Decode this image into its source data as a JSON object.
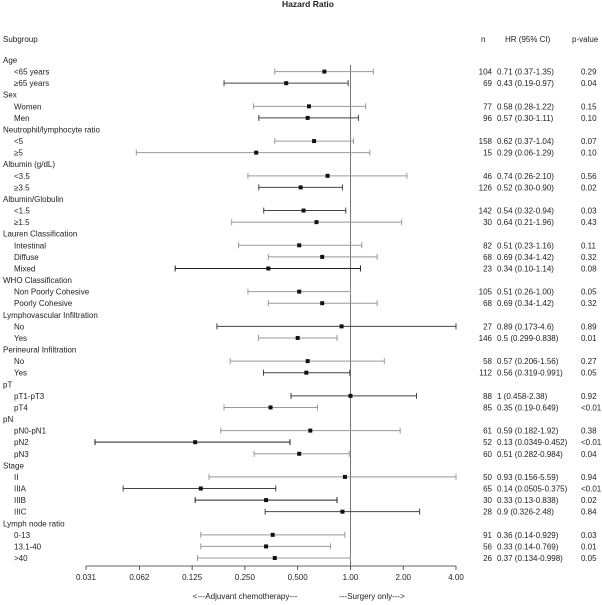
{
  "chart_data": {
    "type": "forest",
    "title": "Hazard Ratio",
    "headers": {
      "subgroup": "Subgroup",
      "n": "n",
      "hr": "HR (95% CI)",
      "p": "p-value"
    },
    "x_scale": "log2",
    "xlim": [
      0.031,
      4.0
    ],
    "reference_line": 1.0,
    "ticks": [
      {
        "value": 0.031,
        "label": "0.031"
      },
      {
        "value": 0.0625,
        "label": "0.062"
      },
      {
        "value": 0.125,
        "label": "0.125"
      },
      {
        "value": 0.25,
        "label": "0.250"
      },
      {
        "value": 0.5,
        "label": "0.500"
      },
      {
        "value": 1.0,
        "label": "1.00"
      },
      {
        "value": 2.0,
        "label": "2.00"
      },
      {
        "value": 4.0,
        "label": "4.00"
      }
    ],
    "footer_left": "<---Adjuvant chemotherapy---",
    "footer_right": "---Surgery only--->",
    "rows": [
      {
        "type": "header",
        "label": "Age"
      },
      {
        "type": "data",
        "label": "<65 years",
        "n": "104",
        "hr_text": "0.71 (0.37-1.35)",
        "p": "0.29",
        "hr": 0.71,
        "lo": 0.37,
        "hi": 1.35,
        "color": "#999999"
      },
      {
        "type": "data",
        "label": "≥65 years",
        "n": "69",
        "hr_text": "0.43 (0.19-0.97)",
        "p": "0.04",
        "hr": 0.43,
        "lo": 0.19,
        "hi": 0.97,
        "color": "#444444"
      },
      {
        "type": "header",
        "label": "Sex"
      },
      {
        "type": "data",
        "label": "Women",
        "n": "77",
        "hr_text": "0.58 (0.28-1.22)",
        "p": "0.15",
        "hr": 0.58,
        "lo": 0.28,
        "hi": 1.22,
        "color": "#999999"
      },
      {
        "type": "data",
        "label": "Men",
        "n": "96",
        "hr_text": "0.57 (0.30-1.11)",
        "p": "0.10",
        "hr": 0.57,
        "lo": 0.3,
        "hi": 1.11,
        "color": "#444444"
      },
      {
        "type": "header",
        "label": "Neutrophil/lymphocyte ratio"
      },
      {
        "type": "data",
        "label": "<5",
        "n": "158",
        "hr_text": "0.62 (0.37-1.04)",
        "p": "0.07",
        "hr": 0.62,
        "lo": 0.37,
        "hi": 1.04,
        "color": "#999999"
      },
      {
        "type": "data",
        "label": "≥5",
        "n": "15",
        "hr_text": "0.29 (0.06-1.29)",
        "p": "0.10",
        "hr": 0.29,
        "lo": 0.06,
        "hi": 1.29,
        "color": "#999999"
      },
      {
        "type": "header",
        "label": "Albumin (g/dL)"
      },
      {
        "type": "data",
        "label": "<3.5",
        "n": "46",
        "hr_text": "0.74 (0.26-2.10)",
        "p": "0.56",
        "hr": 0.74,
        "lo": 0.26,
        "hi": 2.1,
        "color": "#999999"
      },
      {
        "type": "data",
        "label": "≥3.5",
        "n": "126",
        "hr_text": "0.52 (0.30-0.90)",
        "p": "0.02",
        "hr": 0.52,
        "lo": 0.3,
        "hi": 0.9,
        "color": "#444444"
      },
      {
        "type": "header",
        "label": "Albumin/Globulin"
      },
      {
        "type": "data",
        "label": "<1.5",
        "n": "142",
        "hr_text": "0.54 (0.32-0.94)",
        "p": "0.03",
        "hr": 0.54,
        "lo": 0.32,
        "hi": 0.94,
        "color": "#444444"
      },
      {
        "type": "data",
        "label": "≥1.5",
        "n": "30",
        "hr_text": "0.64 (0.21-1.96)",
        "p": "0.43",
        "hr": 0.64,
        "lo": 0.21,
        "hi": 1.96,
        "color": "#999999"
      },
      {
        "type": "header",
        "label": "Lauren Classification"
      },
      {
        "type": "data",
        "label": "Intestinal",
        "n": "82",
        "hr_text": "0.51 (0.23-1.16)",
        "p": "0.11",
        "hr": 0.51,
        "lo": 0.23,
        "hi": 1.16,
        "color": "#999999"
      },
      {
        "type": "data",
        "label": "Diffuse",
        "n": "68",
        "hr_text": "0.69 (0.34-1.42)",
        "p": "0.32",
        "hr": 0.69,
        "lo": 0.34,
        "hi": 1.42,
        "color": "#999999"
      },
      {
        "type": "data",
        "label": "Mixed",
        "n": "23",
        "hr_text": "0.34 (0.10-1.14)",
        "p": "0.08",
        "hr": 0.34,
        "lo": 0.1,
        "hi": 1.14,
        "color": "#222222"
      },
      {
        "type": "header",
        "label": "WHO Classification"
      },
      {
        "type": "data",
        "label": "Non Poorly Cohesive",
        "n": "105",
        "hr_text": "0.51 (0.26-1.00)",
        "p": "0.05",
        "hr": 0.51,
        "lo": 0.26,
        "hi": 1.0,
        "color": "#999999"
      },
      {
        "type": "data",
        "label": "Poorly Cohesive",
        "n": "68",
        "hr_text": "0.69 (0.34-1.42)",
        "p": "0.32",
        "hr": 0.69,
        "lo": 0.34,
        "hi": 1.42,
        "color": "#999999"
      },
      {
        "type": "header",
        "label": "Lymphovascular Infiltration"
      },
      {
        "type": "data",
        "label": "No",
        "n": "27",
        "hr_text": "0.89 (0.173-4.6)",
        "p": "0.89",
        "hr": 0.89,
        "lo": 0.173,
        "hi": 4.6,
        "color": "#444444"
      },
      {
        "type": "data",
        "label": "Yes",
        "n": "146",
        "hr_text": "0.5 (0.299-0.838)",
        "p": "0.01",
        "hr": 0.5,
        "lo": 0.299,
        "hi": 0.838,
        "color": "#999999"
      },
      {
        "type": "header",
        "label": "Perineural Infiltration"
      },
      {
        "type": "data",
        "label": "No",
        "n": "58",
        "hr_text": "0.57 (0.206-1.56)",
        "p": "0.27",
        "hr": 0.57,
        "lo": 0.206,
        "hi": 1.56,
        "color": "#999999"
      },
      {
        "type": "data",
        "label": "Yes",
        "n": "112",
        "hr_text": "0.56 (0.319-0.991)",
        "p": "0.05",
        "hr": 0.56,
        "lo": 0.319,
        "hi": 0.991,
        "color": "#444444"
      },
      {
        "type": "header",
        "label": "pT"
      },
      {
        "type": "data",
        "label": "pT1-pT3",
        "n": "88",
        "hr_text": "1 (0.458-2.38)",
        "p": "0.92",
        "hr": 1.0,
        "lo": 0.458,
        "hi": 2.38,
        "color": "#444444"
      },
      {
        "type": "data",
        "label": "pT4",
        "n": "85",
        "hr_text": "0.35 (0.19-0.649)",
        "p": "<0.01",
        "hr": 0.35,
        "lo": 0.19,
        "hi": 0.649,
        "color": "#999999"
      },
      {
        "type": "header",
        "label": "pN"
      },
      {
        "type": "data",
        "label": "pN0-pN1",
        "n": "61",
        "hr_text": "0.59 (0.182-1.92)",
        "p": "0.38",
        "hr": 0.59,
        "lo": 0.182,
        "hi": 1.92,
        "color": "#999999"
      },
      {
        "type": "data",
        "label": "pN2",
        "n": "52",
        "hr_text": "0.13 (0.0349-0.452)",
        "p": "<0.01",
        "hr": 0.13,
        "lo": 0.0349,
        "hi": 0.452,
        "color": "#222222"
      },
      {
        "type": "data",
        "label": "pN3",
        "n": "60",
        "hr_text": "0.51 (0.282-0.984)",
        "p": "0.04",
        "hr": 0.51,
        "lo": 0.282,
        "hi": 0.984,
        "color": "#999999"
      },
      {
        "type": "header",
        "label": "Stage"
      },
      {
        "type": "data",
        "label": "II",
        "n": "50",
        "hr_text": "0.93 (0.156-5.59)",
        "p": "0.94",
        "hr": 0.93,
        "lo": 0.156,
        "hi": 5.59,
        "color": "#999999"
      },
      {
        "type": "data",
        "label": "IIIA",
        "n": "65",
        "hr_text": "0.14 (0.0505-0.375)",
        "p": "<0.01",
        "hr": 0.14,
        "lo": 0.0505,
        "hi": 0.375,
        "color": "#444444"
      },
      {
        "type": "data",
        "label": "IIIB",
        "n": "30",
        "hr_text": "0.33 (0.13-0.838)",
        "p": "0.02",
        "hr": 0.33,
        "lo": 0.13,
        "hi": 0.838,
        "color": "#222222"
      },
      {
        "type": "data",
        "label": "IIIC",
        "n": "28",
        "hr_text": "0.9 (0.326-2.48)",
        "p": "0.84",
        "hr": 0.9,
        "lo": 0.326,
        "hi": 2.48,
        "color": "#444444"
      },
      {
        "type": "header",
        "label": "Lymph node ratio"
      },
      {
        "type": "data",
        "label": "0-13",
        "n": "91",
        "hr_text": "0.36 (0.14-0.929)",
        "p": "0.03",
        "hr": 0.36,
        "lo": 0.14,
        "hi": 0.929,
        "color": "#999999"
      },
      {
        "type": "data",
        "label": "13.1-40",
        "n": "56",
        "hr_text": "0.33 (0.14-0.769)",
        "p": "0.01",
        "hr": 0.33,
        "lo": 0.14,
        "hi": 0.769,
        "color": "#999999"
      },
      {
        "type": "data",
        "label": ">40",
        "n": "26",
        "hr_text": "0.37 (0.134-0.998)",
        "p": "0.05",
        "hr": 0.37,
        "lo": 0.134,
        "hi": 0.998,
        "color": "#999999"
      }
    ]
  }
}
